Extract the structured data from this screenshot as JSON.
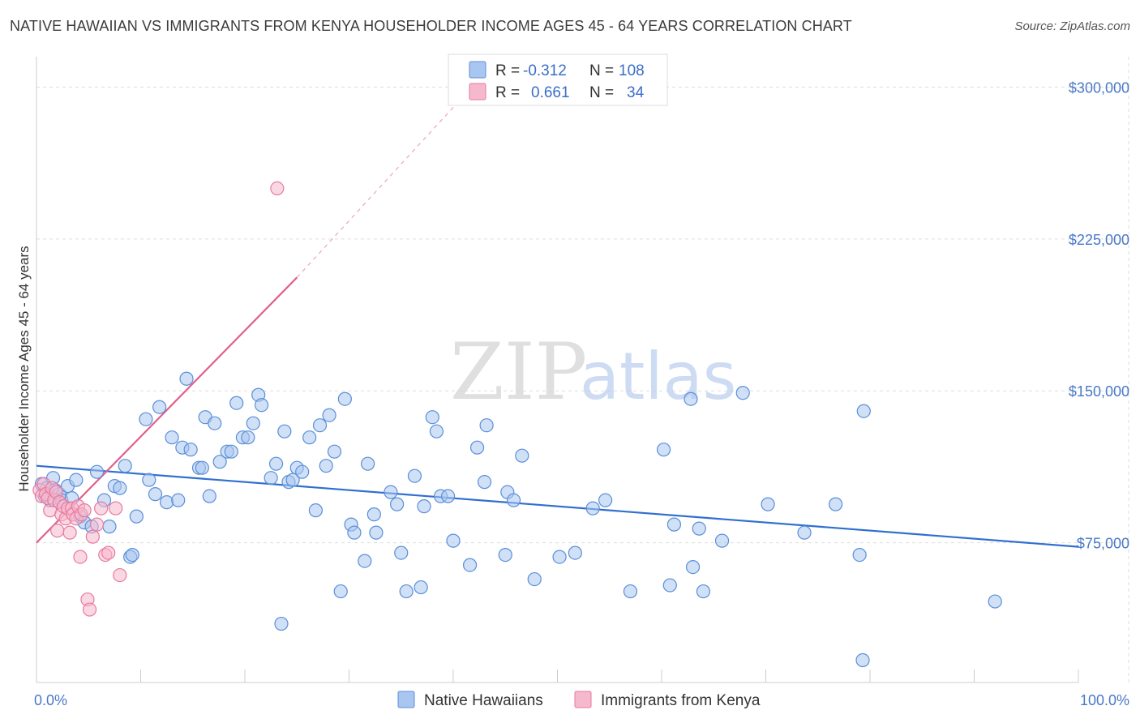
{
  "title": "NATIVE HAWAIIAN VS IMMIGRANTS FROM KENYA HOUSEHOLDER INCOME AGES 45 - 64 YEARS CORRELATION CHART",
  "source": "Source: ZipAtlas.com",
  "watermark": {
    "zip": "ZIP",
    "atlas": "atlas"
  },
  "colors": {
    "blue": "#5b8fd8",
    "blue_fill": "#a9c6f0",
    "blue_line": "#2f6fd0",
    "pink": "#e87aa0",
    "pink_fill": "#f6b8cc",
    "pink_line": "#e0608a",
    "tick_text": "#4a78c8",
    "grid": "#dddddd"
  },
  "legend": {
    "rows": [
      {
        "r_label": "R =",
        "r_value": "-0.312",
        "n_label": "N =",
        "n_value": "108"
      },
      {
        "r_label": "R =",
        "r_value": "0.661",
        "n_label": "N =",
        "n_value": "34"
      }
    ]
  },
  "bottom_legend": [
    "Native Hawaiians",
    "Immigrants from Kenya"
  ],
  "chart_data": {
    "type": "scatter",
    "title": "NATIVE HAWAIIAN VS IMMIGRANTS FROM KENYA HOUSEHOLDER INCOME AGES 45 - 64 YEARS CORRELATION CHART",
    "xlabel": "",
    "ylabel": "Householder Income Ages 45 - 64 years",
    "xlim": [
      0,
      100
    ],
    "ylim": [
      6000,
      315000
    ],
    "x_tick_labels": [
      "0.0%",
      "100.0%"
    ],
    "y_ticks": [
      75000,
      150000,
      225000,
      300000
    ],
    "y_tick_labels": [
      "$75,000",
      "$150,000",
      "$225,000",
      "$300,000"
    ],
    "grid": true,
    "legend_position": "top-center",
    "series": [
      {
        "name": "Native Hawaiians",
        "color": "#5b8fd8",
        "trend": {
          "x": [
            0,
            100
          ],
          "y": [
            113000,
            73000
          ]
        },
        "points": [
          [
            0.5,
            104000
          ],
          [
            0.8,
            98000
          ],
          [
            1.0,
            102000
          ],
          [
            1.3,
            96000
          ],
          [
            1.6,
            107000
          ],
          [
            1.8,
            101000
          ],
          [
            2.2,
            99000
          ],
          [
            2.4,
            96000
          ],
          [
            3.0,
            103000
          ],
          [
            3.4,
            97000
          ],
          [
            3.8,
            106000
          ],
          [
            4.2,
            88000
          ],
          [
            4.6,
            85000
          ],
          [
            5.3,
            83000
          ],
          [
            5.8,
            110000
          ],
          [
            6.5,
            96000
          ],
          [
            7.0,
            83000
          ],
          [
            7.5,
            103000
          ],
          [
            8.0,
            102000
          ],
          [
            8.5,
            113000
          ],
          [
            9.0,
            68000
          ],
          [
            9.2,
            69000
          ],
          [
            9.6,
            88000
          ],
          [
            10.5,
            136000
          ],
          [
            10.8,
            106000
          ],
          [
            11.4,
            99000
          ],
          [
            11.8,
            142000
          ],
          [
            12.5,
            95000
          ],
          [
            13.0,
            127000
          ],
          [
            13.6,
            96000
          ],
          [
            14.0,
            122000
          ],
          [
            14.4,
            156000
          ],
          [
            14.8,
            121000
          ],
          [
            15.6,
            112000
          ],
          [
            15.9,
            112000
          ],
          [
            16.2,
            137000
          ],
          [
            16.6,
            98000
          ],
          [
            17.1,
            134000
          ],
          [
            17.6,
            115000
          ],
          [
            18.3,
            120000
          ],
          [
            18.7,
            120000
          ],
          [
            19.2,
            144000
          ],
          [
            19.8,
            127000
          ],
          [
            20.3,
            127000
          ],
          [
            20.8,
            134000
          ],
          [
            21.3,
            148000
          ],
          [
            21.6,
            143000
          ],
          [
            22.5,
            107000
          ],
          [
            23.0,
            114000
          ],
          [
            23.5,
            35000
          ],
          [
            23.8,
            130000
          ],
          [
            24.2,
            105000
          ],
          [
            24.6,
            106000
          ],
          [
            25.0,
            112000
          ],
          [
            25.5,
            110000
          ],
          [
            26.2,
            127000
          ],
          [
            26.8,
            91000
          ],
          [
            27.2,
            133000
          ],
          [
            27.8,
            113000
          ],
          [
            28.1,
            138000
          ],
          [
            28.6,
            120000
          ],
          [
            29.2,
            51000
          ],
          [
            29.6,
            146000
          ],
          [
            30.2,
            84000
          ],
          [
            30.5,
            80000
          ],
          [
            31.5,
            66000
          ],
          [
            31.8,
            114000
          ],
          [
            32.4,
            89000
          ],
          [
            32.6,
            80000
          ],
          [
            34.0,
            100000
          ],
          [
            34.6,
            94000
          ],
          [
            35.0,
            70000
          ],
          [
            35.5,
            51000
          ],
          [
            36.3,
            108000
          ],
          [
            36.9,
            53000
          ],
          [
            37.2,
            93000
          ],
          [
            38.0,
            137000
          ],
          [
            38.4,
            130000
          ],
          [
            38.8,
            98000
          ],
          [
            39.5,
            98000
          ],
          [
            40.0,
            76000
          ],
          [
            41.6,
            64000
          ],
          [
            42.3,
            122000
          ],
          [
            43.0,
            105000
          ],
          [
            43.2,
            133000
          ],
          [
            45.0,
            69000
          ],
          [
            45.2,
            100000
          ],
          [
            45.8,
            96000
          ],
          [
            46.6,
            118000
          ],
          [
            47.8,
            57000
          ],
          [
            50.2,
            68000
          ],
          [
            51.7,
            70000
          ],
          [
            53.4,
            92000
          ],
          [
            54.6,
            96000
          ],
          [
            57.0,
            51000
          ],
          [
            60.2,
            121000
          ],
          [
            60.8,
            54000
          ],
          [
            61.2,
            84000
          ],
          [
            62.8,
            146000
          ],
          [
            63.0,
            63000
          ],
          [
            63.6,
            82000
          ],
          [
            64.0,
            51000
          ],
          [
            65.8,
            76000
          ],
          [
            67.8,
            149000
          ],
          [
            70.2,
            94000
          ],
          [
            73.7,
            80000
          ],
          [
            76.7,
            94000
          ],
          [
            79.0,
            69000
          ],
          [
            79.3,
            17000
          ],
          [
            79.4,
            140000
          ],
          [
            92.0,
            46000
          ]
        ]
      },
      {
        "name": "Immigrants from Kenya",
        "color": "#e87aa0",
        "trend": {
          "x": [
            0,
            25
          ],
          "y": [
            75000,
            206000
          ]
        },
        "trend_dashed": {
          "x": [
            25,
            40
          ],
          "y": [
            206000,
            290000
          ]
        },
        "points": [
          [
            0.3,
            101000
          ],
          [
            0.5,
            98000
          ],
          [
            0.7,
            104000
          ],
          [
            0.9,
            99000
          ],
          [
            1.1,
            97000
          ],
          [
            1.3,
            91000
          ],
          [
            1.5,
            102000
          ],
          [
            1.7,
            96000
          ],
          [
            1.9,
            100000
          ],
          [
            2.0,
            81000
          ],
          [
            2.2,
            95000
          ],
          [
            2.4,
            89000
          ],
          [
            2.6,
            93000
          ],
          [
            2.8,
            87000
          ],
          [
            3.0,
            92000
          ],
          [
            3.2,
            80000
          ],
          [
            3.4,
            92000
          ],
          [
            3.5,
            89000
          ],
          [
            3.8,
            87000
          ],
          [
            4.0,
            93000
          ],
          [
            4.2,
            68000
          ],
          [
            4.3,
            89000
          ],
          [
            4.6,
            91000
          ],
          [
            4.9,
            47000
          ],
          [
            5.1,
            42000
          ],
          [
            5.4,
            78000
          ],
          [
            5.8,
            84000
          ],
          [
            6.2,
            92000
          ],
          [
            6.6,
            69000
          ],
          [
            6.9,
            70000
          ],
          [
            7.6,
            92000
          ],
          [
            8.0,
            59000
          ],
          [
            23.1,
            250000
          ]
        ]
      }
    ]
  }
}
